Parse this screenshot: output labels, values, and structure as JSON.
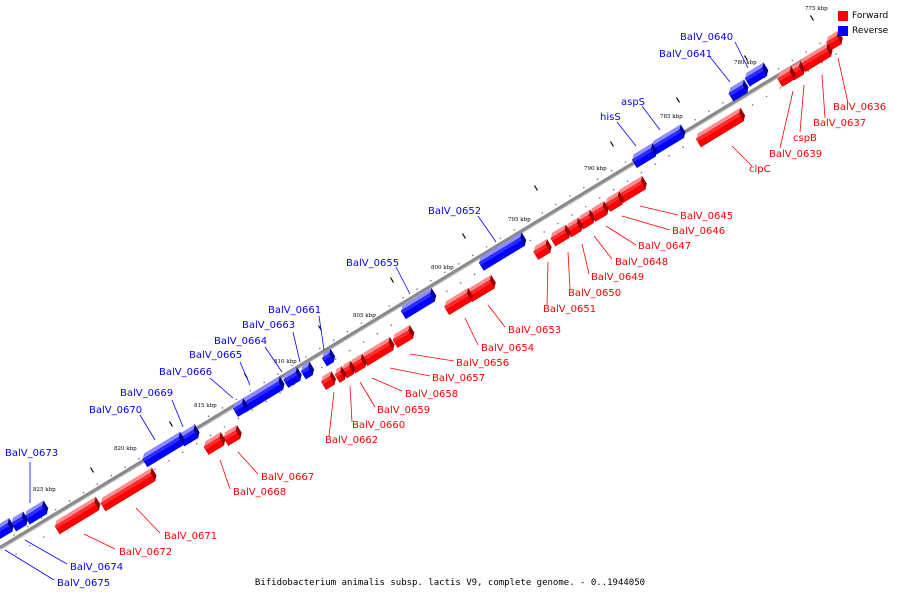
{
  "caption": "Bifidobacterium animalis subsp. lactis V9, complete genome. - 0..1944050",
  "legend": [
    {
      "label": "Forward",
      "color": "#ff0000"
    },
    {
      "label": "Reverse",
      "color": "#0000ff"
    }
  ],
  "colors": {
    "forward": "#ff0000",
    "reverse": "#0000ff",
    "backbone": "#888888"
  },
  "kbp_ticks": [
    {
      "label": "775 kbp"
    },
    {
      "label": "780 kbp"
    },
    {
      "label": "785 kbp"
    },
    {
      "label": "790 kbp"
    },
    {
      "label": "795 kbp"
    },
    {
      "label": "800 kbp"
    },
    {
      "label": "805 kbp"
    },
    {
      "label": "810 kbp"
    },
    {
      "label": "815 kbp"
    },
    {
      "label": "820 kbp"
    },
    {
      "label": "825 kbp"
    }
  ],
  "genes": [
    {
      "label": "BalV_0636",
      "strand": "forward"
    },
    {
      "label": "BalV_0637",
      "strand": "forward"
    },
    {
      "label": "cspB",
      "strand": "forward"
    },
    {
      "label": "BalV_0639",
      "strand": "forward"
    },
    {
      "label": "BalV_0640",
      "strand": "reverse"
    },
    {
      "label": "BalV_0641",
      "strand": "reverse"
    },
    {
      "label": "aspS",
      "strand": "reverse"
    },
    {
      "label": "hisS",
      "strand": "reverse"
    },
    {
      "label": "clpC",
      "strand": "forward"
    },
    {
      "label": "BalV_0645",
      "strand": "forward"
    },
    {
      "label": "BalV_0646",
      "strand": "forward"
    },
    {
      "label": "BalV_0647",
      "strand": "forward"
    },
    {
      "label": "BalV_0648",
      "strand": "forward"
    },
    {
      "label": "BalV_0649",
      "strand": "forward"
    },
    {
      "label": "BalV_0650",
      "strand": "forward"
    },
    {
      "label": "BalV_0651",
      "strand": "forward"
    },
    {
      "label": "BalV_0652",
      "strand": "reverse"
    },
    {
      "label": "BalV_0653",
      "strand": "forward"
    },
    {
      "label": "BalV_0654",
      "strand": "forward"
    },
    {
      "label": "BalV_0655",
      "strand": "reverse"
    },
    {
      "label": "BalV_0656",
      "strand": "forward"
    },
    {
      "label": "BalV_0657",
      "strand": "forward"
    },
    {
      "label": "BalV_0658",
      "strand": "forward"
    },
    {
      "label": "BalV_0659",
      "strand": "forward"
    },
    {
      "label": "BalV_0660",
      "strand": "forward"
    },
    {
      "label": "BalV_0661",
      "strand": "reverse"
    },
    {
      "label": "BalV_0662",
      "strand": "forward"
    },
    {
      "label": "BalV_0663",
      "strand": "reverse"
    },
    {
      "label": "BalV_0664",
      "strand": "reverse"
    },
    {
      "label": "BalV_0665",
      "strand": "reverse"
    },
    {
      "label": "BalV_0666",
      "strand": "reverse"
    },
    {
      "label": "BalV_0667",
      "strand": "forward"
    },
    {
      "label": "BalV_0668",
      "strand": "forward"
    },
    {
      "label": "BalV_0669",
      "strand": "reverse"
    },
    {
      "label": "BalV_0670",
      "strand": "reverse"
    },
    {
      "label": "BalV_0671",
      "strand": "forward"
    },
    {
      "label": "BalV_0672",
      "strand": "forward"
    },
    {
      "label": "BalV_0673",
      "strand": "reverse"
    },
    {
      "label": "BalV_0674",
      "strand": "reverse"
    },
    {
      "label": "BalV_0675",
      "strand": "reverse"
    }
  ]
}
